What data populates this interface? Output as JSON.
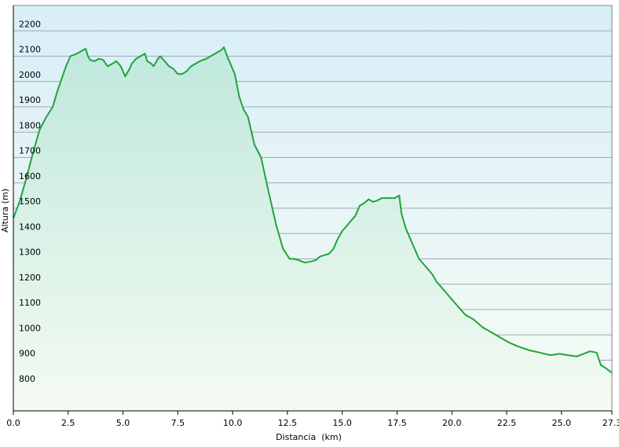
{
  "chart_data": {
    "type": "area",
    "title": "",
    "xlabel": "Distancia  (km)",
    "ylabel": "Altura (m)",
    "xlim": [
      0,
      27.3
    ],
    "ylim": [
      700,
      2300
    ],
    "x_ticks": [
      "0.0",
      "2.5",
      "5.0",
      "7.5",
      "10.0",
      "12.5",
      "15.0",
      "17.5",
      "20.0",
      "22.5",
      "25.0",
      "27.3"
    ],
    "x_tick_values": [
      0,
      2.5,
      5.0,
      7.5,
      10.0,
      12.5,
      15.0,
      17.5,
      20.0,
      22.5,
      25.0,
      27.3
    ],
    "y_ticks": [
      "800",
      "900",
      "1000",
      "1100",
      "1200",
      "1300",
      "1400",
      "1500",
      "1600",
      "1700",
      "1800",
      "1900",
      "2000",
      "2100",
      "2200"
    ],
    "y_tick_values": [
      800,
      900,
      1000,
      1100,
      1200,
      1300,
      1400,
      1500,
      1600,
      1700,
      1800,
      1900,
      2000,
      2100,
      2200
    ],
    "grid": true,
    "colors": {
      "line": "#22a33c",
      "fill_top": "#bfe8dc",
      "fill_bottom": "#f4fbf2",
      "bg_top": "#d8eef8",
      "bg_bottom": "#f6fcf4",
      "grid": "#a0aab4"
    },
    "series": [
      {
        "x": [
          0.0,
          0.3,
          0.6,
          0.9,
          1.2,
          1.5,
          1.8,
          2.0,
          2.2,
          2.4,
          2.6,
          2.9,
          3.1,
          3.3,
          3.4,
          3.5,
          3.7,
          3.9,
          4.1,
          4.3,
          4.5,
          4.7,
          4.9,
          5.1,
          5.3,
          5.4,
          5.6,
          5.8,
          6.0,
          6.1,
          6.3,
          6.4,
          6.6,
          6.7,
          6.9,
          7.1,
          7.3,
          7.5,
          7.7,
          7.9,
          8.1,
          8.3,
          8.5,
          8.8,
          9.0,
          9.2,
          9.5,
          9.6,
          9.8,
          9.95,
          10.1,
          10.3,
          10.5,
          10.7,
          11.0,
          11.3,
          11.6,
          12.0,
          12.3,
          12.6,
          12.8,
          13.0,
          13.3,
          13.6,
          13.8,
          14.0,
          14.2,
          14.4,
          14.6,
          14.8,
          15.0,
          15.2,
          15.4,
          15.6,
          15.8,
          16.0,
          16.2,
          16.4,
          16.6,
          16.8,
          17.0,
          17.2,
          17.4,
          17.6,
          17.7,
          17.9,
          18.1,
          18.3,
          18.5,
          18.7,
          18.9,
          19.1,
          19.3,
          19.6,
          20.0,
          20.3,
          20.6,
          21.0,
          21.4,
          21.8,
          22.2,
          22.6,
          23.0,
          23.5,
          24.0,
          24.5,
          24.9,
          25.3,
          25.7,
          26.0,
          26.3,
          26.6,
          26.8,
          27.0,
          27.3
        ],
        "values": [
          1460,
          1530,
          1620,
          1720,
          1810,
          1860,
          1900,
          1960,
          2010,
          2060,
          2100,
          2110,
          2120,
          2130,
          2100,
          2085,
          2080,
          2090,
          2085,
          2060,
          2070,
          2080,
          2060,
          2020,
          2050,
          2070,
          2090,
          2100,
          2110,
          2080,
          2070,
          2060,
          2090,
          2100,
          2080,
          2060,
          2050,
          2030,
          2030,
          2040,
          2060,
          2070,
          2080,
          2090,
          2100,
          2110,
          2125,
          2135,
          2090,
          2060,
          2030,
          1940,
          1890,
          1860,
          1750,
          1700,
          1580,
          1430,
          1340,
          1300,
          1300,
          1295,
          1285,
          1290,
          1295,
          1310,
          1315,
          1320,
          1340,
          1380,
          1410,
          1430,
          1450,
          1470,
          1510,
          1520,
          1535,
          1525,
          1530,
          1540,
          1540,
          1540,
          1540,
          1550,
          1480,
          1420,
          1380,
          1340,
          1300,
          1280,
          1260,
          1240,
          1210,
          1180,
          1140,
          1110,
          1080,
          1060,
          1030,
          1010,
          990,
          970,
          955,
          940,
          930,
          920,
          925,
          920,
          915,
          925,
          935,
          930,
          880,
          870,
          850
        ]
      }
    ]
  }
}
